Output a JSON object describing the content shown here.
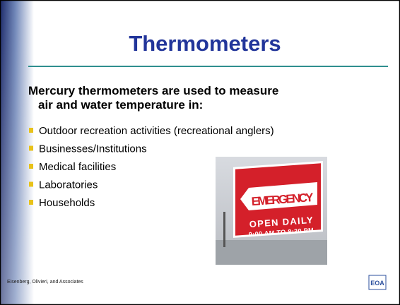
{
  "title": "Thermometers",
  "heading": [
    "Mercury thermometers are used to measure",
    "air and water temperature in:"
  ],
  "bullets": [
    "Outdoor recreation activities (recreational anglers)",
    "Businesses/Institutions",
    "Medical facilities",
    "Laboratories",
    "Households"
  ],
  "image": {
    "sign_top": "EMERGENCY",
    "sign_middle": "OPEN DAILY",
    "sign_bottom": "9:00 AM TO 8:30 PM"
  },
  "footer": "Eisenberg, Olivieri, and Associates",
  "logo": "EOA"
}
